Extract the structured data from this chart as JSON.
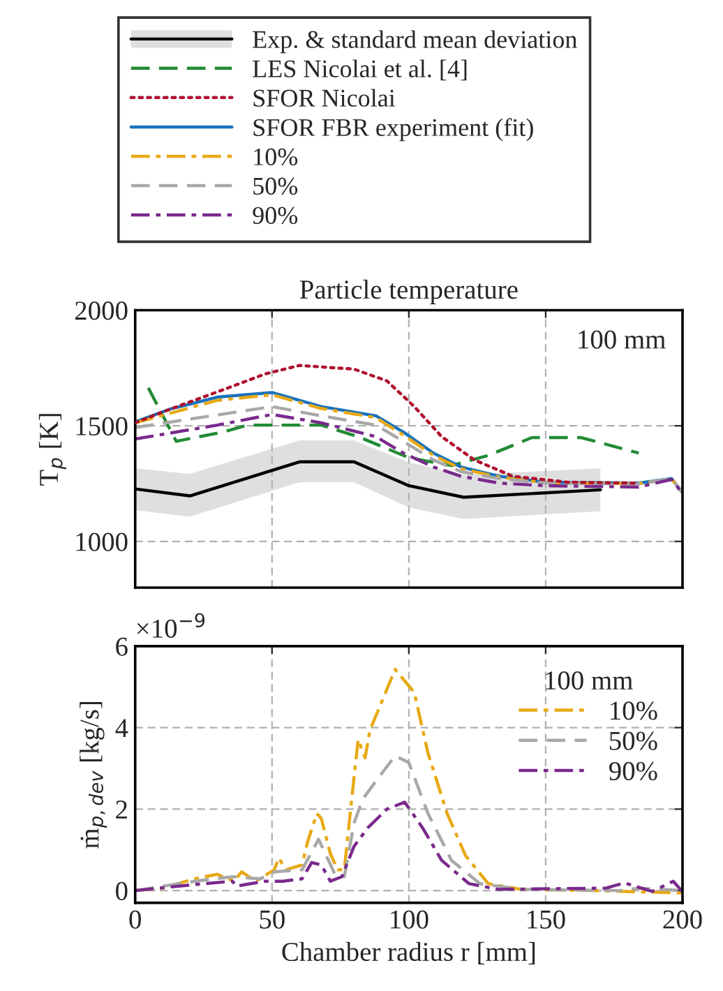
{
  "chart_data": [
    {
      "type": "line",
      "title": "Particle temperature",
      "ylabel": "T$_{p}$ [K]",
      "xlim": [
        0,
        200
      ],
      "xticks": [
        0,
        50,
        100,
        150,
        200
      ],
      "ylim": [
        800,
        2000
      ],
      "yticks": [
        1000,
        1500,
        2000
      ],
      "tick_labels": "y",
      "grid": true,
      "legend": "top",
      "annotations": [
        "100 mm"
      ],
      "series": [
        {
          "name": "Exp. & standard mean deviation",
          "color": "#000000",
          "line_style": "solid",
          "x": [
            0,
            20,
            60,
            80,
            100,
            120,
            170
          ],
          "values": [
            1227,
            1197,
            1344,
            1344,
            1241,
            1191,
            1223
          ],
          "lower": [
            1135,
            1107,
            1256,
            1256,
            1147,
            1097,
            1131
          ],
          "upper": [
            1316,
            1292,
            1437,
            1437,
            1342,
            1288,
            1316
          ]
        },
        {
          "name": "LES Nicolai et al. [4]",
          "color": "#228b34",
          "line_style": "dashed",
          "x": [
            4.8,
            15,
            32,
            41,
            68,
            81.5,
            100,
            115.6,
            129,
            145,
            163,
            184
          ],
          "values": [
            1664,
            1433,
            1473,
            1503,
            1503,
            1453,
            1362,
            1328,
            1372,
            1449,
            1449,
            1382
          ]
        },
        {
          "name": "SFOR Nicolai",
          "color": "#b0112e",
          "line_style": "dotted",
          "x": [
            0,
            13,
            34,
            47.4,
            60,
            80,
            92,
            102,
            112,
            124,
            138,
            158,
            184
          ],
          "values": [
            1513,
            1573,
            1664,
            1724,
            1761,
            1745,
            1694,
            1583,
            1453,
            1352,
            1282,
            1256,
            1252
          ]
        },
        {
          "name": "SFOR FBR experiment (fit)",
          "color": "#1a72bd",
          "line_style": "solid",
          "x": [
            0,
            13,
            30,
            50,
            68,
            88,
            98,
            109,
            119,
            133,
            150,
            184,
            196,
            200
          ],
          "values": [
            1517,
            1573,
            1624,
            1644,
            1583,
            1543,
            1473,
            1382,
            1322,
            1282,
            1256,
            1252,
            1272,
            1211
          ]
        },
        {
          "name": "10%",
          "color": "#e8a915",
          "line_style": "dashdot",
          "x": [
            0,
            30,
            50,
            68,
            88,
            98,
            109,
            119,
            133,
            150,
            184,
            196,
            200
          ],
          "values": [
            1513,
            1610,
            1634,
            1575,
            1535,
            1460,
            1372,
            1315,
            1278,
            1254,
            1250,
            1270,
            1211
          ]
        },
        {
          "name": "50%",
          "color": "#a8a8a8",
          "line_style": "dashed",
          "x": [
            0,
            50,
            68,
            88,
            98,
            109,
            119,
            133,
            150,
            184,
            196,
            200
          ],
          "values": [
            1493,
            1583,
            1543,
            1503,
            1433,
            1352,
            1302,
            1272,
            1252,
            1248,
            1272,
            1211
          ]
        },
        {
          "name": "90%",
          "color": "#7a2a8c",
          "line_style": "dashdot",
          "x": [
            0,
            30,
            50,
            68,
            88,
            98,
            109,
            119,
            133,
            150,
            184,
            196,
            200
          ],
          "values": [
            1443,
            1503,
            1549,
            1513,
            1453,
            1382,
            1322,
            1282,
            1252,
            1241,
            1235,
            1268,
            1207
          ]
        }
      ]
    },
    {
      "type": "line",
      "xlabel": "Chamber radius r [mm]",
      "ylabel": "ṁ$_{p,dev}$ [kg/s]",
      "xlim": [
        0,
        200
      ],
      "xticks": [
        0,
        50,
        100,
        150,
        200
      ],
      "ylim": [
        -0.3,
        6
      ],
      "yticks": [
        0,
        2,
        4,
        6
      ],
      "grid": true,
      "legend": "upper right",
      "legend_title": "100 mm",
      "annotations": [
        "×10$^{−9}$"
      ],
      "series": [
        {
          "name": "10%",
          "color": "#e8a915",
          "line_style": "dashdot",
          "x": [
            0,
            10,
            21.8,
            30,
            36,
            38.9,
            44,
            50.8,
            52.5,
            55,
            61,
            63,
            66.4,
            68,
            71.3,
            74,
            76.4,
            80,
            81.5,
            84,
            85.8,
            95,
            102,
            107,
            114,
            120.7,
            129,
            141,
            167,
            184,
            200
          ],
          "values": [
            0,
            0.06,
            0.29,
            0.4,
            0.23,
            0.46,
            0.23,
            0.51,
            0.8,
            0.51,
            0.63,
            1.2,
            1.89,
            1.77,
            0.91,
            0.51,
            0.51,
            2.8,
            3.71,
            3.26,
            3.94,
            5.43,
            4.86,
            3.37,
            1.89,
            0.86,
            0.17,
            0.03,
            0,
            -0.03,
            -0.06
          ]
        },
        {
          "name": "50%",
          "color": "#a8a8a8",
          "line_style": "dashed",
          "x": [
            0,
            21.8,
            35.5,
            45.7,
            51,
            61,
            67,
            73,
            76.4,
            80,
            83,
            88,
            95,
            100,
            107,
            115.6,
            126,
            141,
            177,
            184,
            200
          ],
          "values": [
            0,
            0.23,
            0.34,
            0.29,
            0.46,
            0.51,
            1.26,
            0.4,
            0.34,
            1.66,
            2.23,
            2.69,
            3.31,
            3.14,
            1.89,
            0.74,
            0.17,
            0.03,
            0,
            0.06,
            0
          ]
        },
        {
          "name": "90%",
          "color": "#7a2a8c",
          "line_style": "dashdot",
          "x": [
            0,
            21.8,
            35.5,
            37,
            47.4,
            54,
            61,
            64.5,
            68,
            71.3,
            75.5,
            80,
            85,
            92,
            98.5,
            105,
            112,
            122,
            132.6,
            172,
            178.7,
            189,
            196.6,
            200
          ],
          "values": [
            0,
            0.15,
            0.23,
            0.11,
            0.23,
            0.23,
            0.29,
            0.69,
            0.63,
            0.23,
            0.34,
            1.09,
            1.54,
            2.0,
            2.17,
            1.54,
            0.74,
            0.17,
            0.03,
            0.06,
            0.19,
            -0.02,
            0.23,
            -0.03
          ]
        }
      ]
    }
  ]
}
